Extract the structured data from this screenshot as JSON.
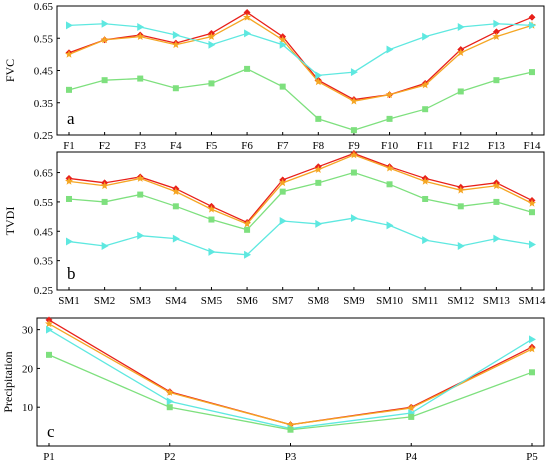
{
  "chart_data": [
    {
      "type": "line",
      "panel_label": "a",
      "ylabel": "FVC",
      "xlabel": "",
      "categories": [
        "F1",
        "F2",
        "F3",
        "F4",
        "F5",
        "F6",
        "F7",
        "F8",
        "F9",
        "F10",
        "F11",
        "F12",
        "F13",
        "F14"
      ],
      "ylim": [
        0.25,
        0.65
      ],
      "yticks": [
        "0.25",
        "0.35",
        "0.45",
        "0.55",
        "0.65"
      ],
      "yticks_values": [
        0.25,
        0.35,
        0.45,
        0.55,
        0.65
      ],
      "grid": false,
      "series": [
        {
          "values": [
            0.505,
            0.545,
            0.56,
            0.535,
            0.565,
            0.63,
            0.555,
            0.42,
            0.36,
            0.375,
            0.41,
            0.515,
            0.57,
            0.615
          ],
          "color": "#e8201a",
          "marker": "diamond"
        },
        {
          "values": [
            0.5,
            0.545,
            0.555,
            0.53,
            0.555,
            0.615,
            0.545,
            0.415,
            0.355,
            0.375,
            0.405,
            0.505,
            0.555,
            0.59
          ],
          "color": "#f5a623",
          "marker": "star"
        },
        {
          "values": [
            0.59,
            0.595,
            0.585,
            0.56,
            0.53,
            0.565,
            0.53,
            0.435,
            0.445,
            0.515,
            0.555,
            0.585,
            0.595,
            0.59
          ],
          "color": "#5ee8e0",
          "marker": "triangle-right"
        },
        {
          "values": [
            0.39,
            0.42,
            0.425,
            0.395,
            0.41,
            0.455,
            0.4,
            0.3,
            0.265,
            0.3,
            0.33,
            0.385,
            0.42,
            0.445
          ],
          "color": "#7ee07e",
          "marker": "square"
        }
      ]
    },
    {
      "type": "line",
      "panel_label": "b",
      "ylabel": "TVDI",
      "xlabel": "",
      "categories": [
        "SM1",
        "SM2",
        "SM3",
        "SM4",
        "SM5",
        "SM6",
        "SM7",
        "SM8",
        "SM9",
        "SM10",
        "SM11",
        "SM12",
        "SM13",
        "SM14"
      ],
      "ylim": [
        0.25,
        0.72
      ],
      "yticks": [
        "0.25",
        "0.35",
        "0.45",
        "0.55",
        "0.65"
      ],
      "yticks_values": [
        0.25,
        0.35,
        0.45,
        0.55,
        0.65
      ],
      "grid": false,
      "series": [
        {
          "values": [
            0.63,
            0.615,
            0.635,
            0.595,
            0.535,
            0.48,
            0.625,
            0.67,
            0.715,
            0.67,
            0.63,
            0.6,
            0.615,
            0.555
          ],
          "color": "#e8201a",
          "marker": "diamond"
        },
        {
          "values": [
            0.62,
            0.605,
            0.63,
            0.585,
            0.525,
            0.475,
            0.615,
            0.66,
            0.71,
            0.665,
            0.62,
            0.59,
            0.605,
            0.545
          ],
          "color": "#f5a623",
          "marker": "star"
        },
        {
          "values": [
            0.415,
            0.4,
            0.435,
            0.425,
            0.38,
            0.37,
            0.485,
            0.475,
            0.495,
            0.47,
            0.42,
            0.4,
            0.425,
            0.405
          ],
          "color": "#5ee8e0",
          "marker": "triangle-right"
        },
        {
          "values": [
            0.56,
            0.55,
            0.575,
            0.535,
            0.49,
            0.455,
            0.585,
            0.615,
            0.65,
            0.61,
            0.56,
            0.535,
            0.55,
            0.515
          ],
          "color": "#7ee07e",
          "marker": "square"
        }
      ]
    },
    {
      "type": "line",
      "panel_label": "c",
      "ylabel": "Precipitation",
      "xlabel": "",
      "categories": [
        "P1",
        "P2",
        "P3",
        "P4",
        "P5"
      ],
      "ylim": [
        0,
        33
      ],
      "yticks": [
        "10",
        "20",
        "30"
      ],
      "yticks_values": [
        10,
        20,
        30
      ],
      "grid": false,
      "series": [
        {
          "values": [
            32.5,
            14.0,
            5.5,
            10.0,
            25.5
          ],
          "color": "#e8201a",
          "marker": "diamond"
        },
        {
          "values": [
            31.5,
            13.8,
            5.5,
            9.8,
            25.0
          ],
          "color": "#f5a623",
          "marker": "star"
        },
        {
          "values": [
            30.0,
            11.5,
            4.5,
            8.5,
            27.5
          ],
          "color": "#5ee8e0",
          "marker": "triangle-right"
        },
        {
          "values": [
            23.5,
            10.0,
            4.2,
            7.5,
            19.0
          ],
          "color": "#7ee07e",
          "marker": "square"
        }
      ]
    }
  ]
}
